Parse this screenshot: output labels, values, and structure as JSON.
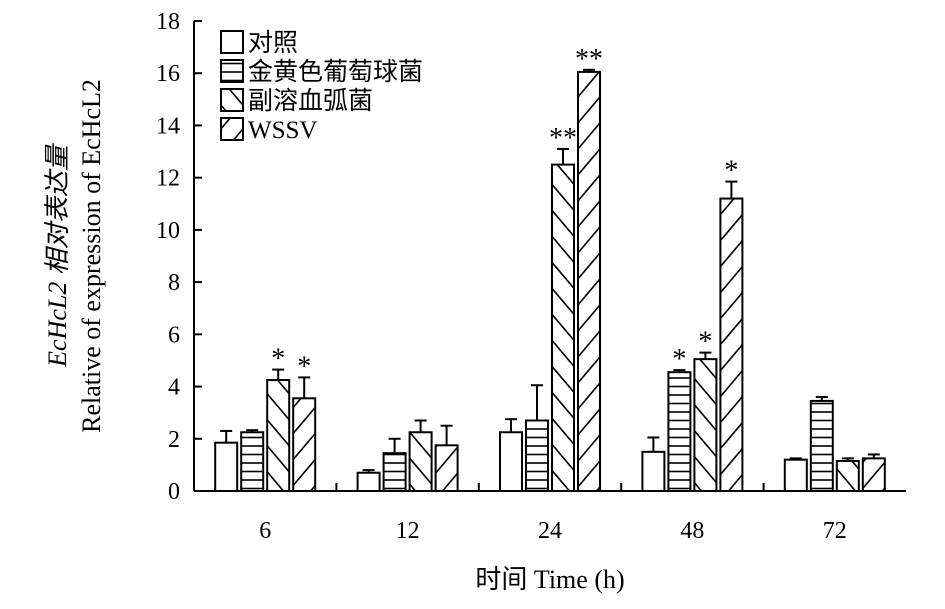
{
  "chart_data": {
    "type": "bar",
    "title": "",
    "xlabel": "时间 Time (h)",
    "ylabel_line1": "EcHcL2 相对表达量",
    "ylabel_line2": "Relative of expression of EcHcL2",
    "ylim": [
      0,
      18
    ],
    "yticks": [
      0,
      2,
      4,
      6,
      8,
      10,
      12,
      14,
      16,
      18
    ],
    "categories": [
      "6",
      "12",
      "24",
      "48",
      "72"
    ],
    "legend_position": "top-left",
    "series": [
      {
        "name": "对照",
        "pattern": "none",
        "values": [
          1.85,
          0.7,
          2.25,
          1.5,
          1.2
        ],
        "errors": [
          0.45,
          0.1,
          0.5,
          0.55,
          0.05
        ],
        "significance": [
          "",
          "",
          "",
          "",
          ""
        ]
      },
      {
        "name": "金黄色葡萄球菌",
        "pattern": "horizontal",
        "values": [
          2.25,
          1.45,
          2.7,
          4.55,
          3.45
        ],
        "errors": [
          0.08,
          0.55,
          1.35,
          0.08,
          0.15
        ],
        "significance": [
          "",
          "",
          "",
          "*",
          ""
        ]
      },
      {
        "name": "副溶血弧菌",
        "pattern": "backslash",
        "values": [
          4.25,
          2.25,
          12.5,
          5.05,
          1.15
        ],
        "errors": [
          0.4,
          0.45,
          0.6,
          0.25,
          0.1
        ],
        "significance": [
          "*",
          "",
          "**",
          "*",
          ""
        ]
      },
      {
        "name": "WSSV",
        "pattern": "slash",
        "values": [
          3.55,
          1.75,
          16.05,
          11.2,
          1.25
        ],
        "errors": [
          0.8,
          0.75,
          0.08,
          0.65,
          0.15
        ],
        "significance": [
          "*",
          "",
          "**",
          "*",
          ""
        ]
      }
    ]
  }
}
